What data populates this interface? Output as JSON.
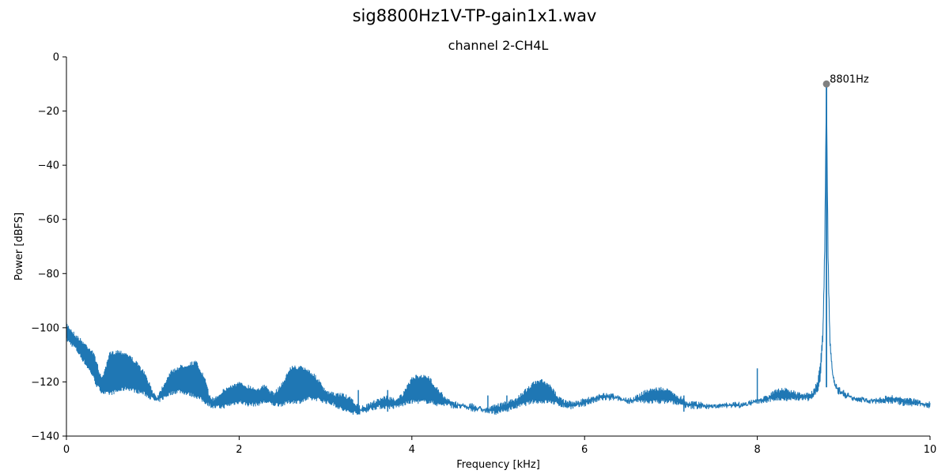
{
  "figure": {
    "title": "sig8800Hz1V-TP-gain1x1.wav"
  },
  "chart_data": {
    "type": "line",
    "title": "channel 2-CH4L",
    "xlabel": "Frequency [kHz]",
    "ylabel": "Power [dBFS]",
    "xlim": [
      0,
      10
    ],
    "ylim": [
      -140,
      0
    ],
    "xticks": [
      0,
      2,
      4,
      6,
      8,
      10
    ],
    "yticks": [
      0,
      -20,
      -40,
      -60,
      -80,
      -100,
      -120,
      -140
    ],
    "xtick_labels": [
      "0",
      "2",
      "4",
      "6",
      "8",
      "10"
    ],
    "ytick_labels": [
      "0",
      "−20",
      "−40",
      "−60",
      "−80",
      "−100",
      "−120",
      "−140"
    ],
    "grid": false,
    "line_color": "#1f77b4",
    "marker_color": "#808080",
    "envelope": {
      "x": [
        0,
        0.1,
        0.2,
        0.3,
        0.35,
        0.4,
        0.45,
        0.5,
        0.6,
        0.7,
        0.8,
        0.9,
        1.0,
        1.05,
        1.1,
        1.2,
        1.3,
        1.4,
        1.5,
        1.6,
        1.65,
        1.7,
        1.8,
        1.9,
        2.0,
        2.1,
        2.2,
        2.3,
        2.4,
        2.5,
        2.6,
        2.7,
        2.8,
        2.9,
        3.0,
        3.1,
        3.2,
        3.3,
        3.4,
        3.5,
        3.6,
        3.7,
        3.8,
        3.9,
        4.0,
        4.1,
        4.2,
        4.3,
        4.4,
        4.5,
        4.6,
        4.7,
        4.8,
        4.9,
        5.0,
        5.1,
        5.2,
        5.3,
        5.4,
        5.5,
        5.6,
        5.7,
        5.8,
        5.9,
        6.0,
        6.1,
        6.2,
        6.3,
        6.4,
        6.5,
        6.6,
        6.7,
        6.8,
        6.9,
        7.0,
        7.1,
        7.2,
        7.3,
        7.4,
        7.5,
        7.6,
        7.7,
        7.8,
        7.9,
        8.0,
        8.1,
        8.2,
        8.3,
        8.4,
        8.5,
        8.6,
        8.65,
        8.7,
        8.73,
        8.76,
        8.78,
        8.79,
        8.8,
        8.81,
        8.82,
        8.84,
        8.87,
        8.9,
        8.95,
        9.0,
        9.1,
        9.2,
        9.3,
        9.4,
        9.5,
        9.6,
        9.7,
        9.8,
        9.9,
        10.0
      ],
      "upper": [
        -98,
        -102,
        -105,
        -108,
        -112,
        -118,
        -115,
        -109,
        -108,
        -109,
        -112,
        -116,
        -123,
        -125,
        -122,
        -116,
        -114,
        -113,
        -112,
        -118,
        -124,
        -126,
        -123,
        -121,
        -120,
        -121,
        -122,
        -121,
        -124,
        -120,
        -114,
        -114,
        -115,
        -118,
        -123,
        -124,
        -124,
        -126,
        -129,
        -128,
        -126,
        -125,
        -126,
        -124,
        -118,
        -117,
        -118,
        -122,
        -126,
        -127,
        -128,
        -128,
        -129,
        -129,
        -128,
        -127,
        -126,
        -123,
        -120,
        -119,
        -121,
        -125,
        -127,
        -127,
        -126,
        -125,
        -124,
        -124,
        -125,
        -126,
        -125,
        -123,
        -122,
        -122,
        -123,
        -125,
        -127,
        -127,
        -128,
        -128,
        -128,
        -128,
        -128,
        -127,
        -126,
        -125,
        -123,
        -122,
        -123,
        -124,
        -124,
        -123,
        -119,
        -113,
        -100,
        -70,
        -40,
        -10,
        -40,
        -72,
        -102,
        -115,
        -120,
        -122,
        -123,
        -125,
        -126,
        -126,
        -126,
        -125,
        -125,
        -126,
        -126,
        -127,
        -127
      ],
      "lower": [
        -105,
        -108,
        -113,
        -118,
        -122,
        -124,
        -125,
        -125,
        -124,
        -123,
        -124,
        -125,
        -127,
        -128,
        -127,
        -125,
        -124,
        -125,
        -126,
        -128,
        -129,
        -130,
        -130,
        -129,
        -128,
        -129,
        -129,
        -128,
        -129,
        -129,
        -128,
        -128,
        -127,
        -127,
        -128,
        -129,
        -131,
        -132,
        -132,
        -131,
        -130,
        -130,
        -130,
        -129,
        -128,
        -128,
        -128,
        -129,
        -129,
        -130,
        -130,
        -131,
        -131,
        -132,
        -132,
        -131,
        -130,
        -129,
        -128,
        -128,
        -128,
        -129,
        -130,
        -130,
        -129,
        -128,
        -127,
        -127,
        -127,
        -128,
        -128,
        -128,
        -128,
        -128,
        -128,
        -129,
        -130,
        -130,
        -130,
        -130,
        -129,
        -129,
        -129,
        -129,
        -128,
        -128,
        -127,
        -127,
        -127,
        -127,
        -127,
        -126,
        -124,
        -120,
        -105,
        -75,
        -45,
        -12,
        -45,
        -78,
        -106,
        -118,
        -123,
        -125,
        -126,
        -127,
        -127,
        -128,
        -128,
        -128,
        -128,
        -129,
        -129,
        -129,
        -130
      ]
    },
    "spurs": [
      {
        "x": 3.38,
        "top": -123,
        "bottom": -132
      },
      {
        "x": 3.72,
        "top": -123,
        "bottom": -131
      },
      {
        "x": 4.88,
        "top": -125,
        "bottom": -131
      },
      {
        "x": 5.1,
        "top": -125,
        "bottom": -130
      },
      {
        "x": 7.15,
        "top": -125,
        "bottom": -131
      },
      {
        "x": 8.0,
        "top": -115,
        "bottom": -128
      }
    ],
    "annotations": [
      {
        "x": 8.801,
        "y": -10,
        "label": "8801Hz"
      }
    ]
  }
}
